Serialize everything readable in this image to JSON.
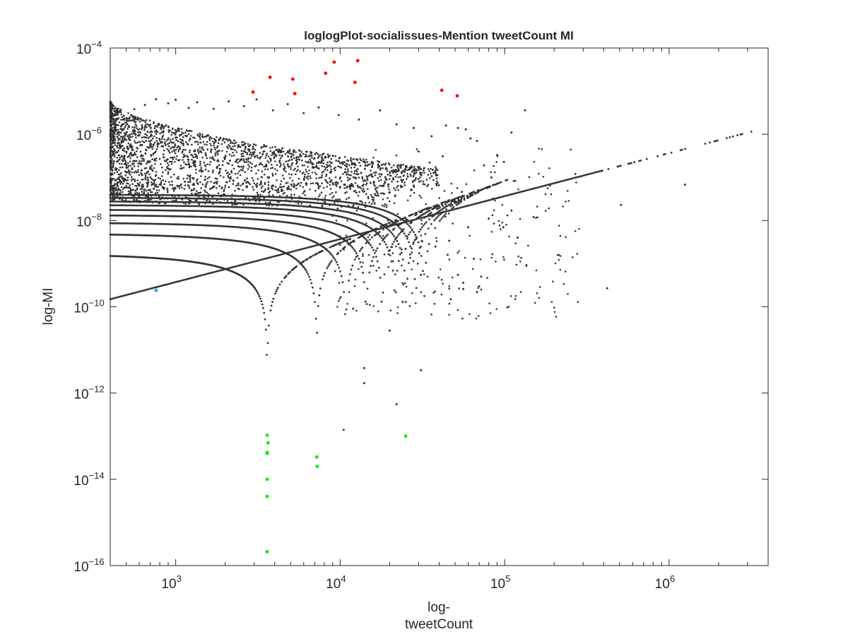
{
  "chart_data": {
    "type": "scatter",
    "title": "loglogPlot-socialissues-Mention tweetCount MI",
    "xlabel_lines": [
      "log-",
      "tweetCount"
    ],
    "ylabel": "log-MI",
    "xscale": "log",
    "yscale": "log",
    "xlim": [
      400,
      4000000
    ],
    "ylim": [
      1e-16,
      0.0001
    ],
    "grid": false,
    "legend": "none",
    "x_ticks": [
      {
        "value": 1000,
        "base": "10",
        "exp": "3"
      },
      {
        "value": 10000,
        "base": "10",
        "exp": "4"
      },
      {
        "value": 100000,
        "base": "10",
        "exp": "5"
      },
      {
        "value": 1000000,
        "base": "10",
        "exp": "6"
      }
    ],
    "y_ticks": [
      {
        "value": 1e-16,
        "base": "10",
        "exp": "−16"
      },
      {
        "value": 1e-14,
        "base": "10",
        "exp": "−14"
      },
      {
        "value": 1e-12,
        "base": "10",
        "exp": "−12"
      },
      {
        "value": 1e-10,
        "base": "10",
        "exp": "−10"
      },
      {
        "value": 1e-08,
        "base": "10",
        "exp": "−8"
      },
      {
        "value": 1e-06,
        "base": "10",
        "exp": "−6"
      },
      {
        "value": 0.0001,
        "base": "10",
        "exp": "−4"
      }
    ],
    "colors": {
      "bulk": "#333333",
      "high": "#ff0000",
      "low": "#00ee00",
      "marked": "#00b0f0",
      "axis": "#262626"
    },
    "series": [
      {
        "color_key": "high",
        "points": [
          [
            2950,
            9.5e-06
          ],
          [
            3750,
            2.1e-05
          ],
          [
            5150,
            1.9e-05
          ],
          [
            5300,
            8.8e-06
          ],
          [
            8150,
            2.6e-05
          ],
          [
            9200,
            4.7e-05
          ],
          [
            12300,
            1.6e-05
          ],
          [
            12800,
            5.1e-05
          ],
          [
            41500,
            1.05e-05
          ],
          [
            51500,
            7.8e-06
          ]
        ]
      },
      {
        "color_key": "low",
        "points": [
          [
            3600,
            1.05e-13
          ],
          [
            3650,
            7e-14
          ],
          [
            3600,
            4.2e-14
          ],
          [
            3600,
            4e-14
          ],
          [
            3600,
            1e-14
          ],
          [
            3600,
            4e-15
          ],
          [
            3600,
            2.1e-16
          ],
          [
            7200,
            3.3e-14
          ],
          [
            7250,
            2e-14
          ],
          [
            25000,
            1e-13
          ]
        ]
      },
      {
        "color_key": "marked",
        "points": [
          [
            760,
            2.4e-10
          ]
        ]
      },
      {
        "color_key": "bulk",
        "generator": "cloud",
        "upper_line": {
          "x": [
            400,
            3300000
          ],
          "y": [
            1.5e-10,
            1.2e-06
          ]
        },
        "cusp_curves": [
          {
            "level": 1.7e-09,
            "zero_x": 3600
          },
          {
            "level": 5e-09,
            "zero_x": 7200
          },
          {
            "level": 9e-09,
            "zero_x": 10800
          },
          {
            "level": 1.35e-08,
            "zero_x": 14400
          },
          {
            "level": 1.8e-08,
            "zero_x": 18000
          },
          {
            "level": 2.3e-08,
            "zero_x": 21600
          },
          {
            "level": 2.8e-08,
            "zero_x": 25200
          },
          {
            "level": 3.4e-08,
            "zero_x": 28800
          },
          {
            "level": 4e-08,
            "zero_x": 32400
          }
        ],
        "points": [
          [
            400,
            3.5e-06
          ],
          [
            480,
            2.2e-06
          ],
          [
            560,
            3.8e-06
          ],
          [
            650,
            4.8e-06
          ],
          [
            760,
            6.5e-06
          ],
          [
            900,
            5.2e-06
          ],
          [
            1000,
            6.3e-06
          ],
          [
            1200,
            4.1e-06
          ],
          [
            1350,
            5.5e-06
          ],
          [
            1700,
            3.9e-06
          ],
          [
            2100,
            5.8e-06
          ],
          [
            2600,
            4.5e-06
          ],
          [
            3100,
            6.4e-06
          ],
          [
            3900,
            3.6e-06
          ],
          [
            4800,
            5e-06
          ],
          [
            6000,
            3.1e-06
          ],
          [
            7400,
            4.2e-06
          ],
          [
            9800,
            2.8e-06
          ],
          [
            13000,
            2.2e-06
          ],
          [
            17500,
            3.6e-06
          ],
          [
            22000,
            1.7e-06
          ],
          [
            28000,
            1.4e-06
          ],
          [
            36000,
            9e-07
          ],
          [
            44000,
            1.6e-06
          ],
          [
            52000,
            1.4e-06
          ],
          [
            58000,
            1.3e-06
          ],
          [
            62000,
            8e-07
          ],
          [
            68000,
            7e-07
          ],
          [
            75000,
            1.9e-07
          ],
          [
            90000,
            3.3e-07
          ],
          [
            99000,
            2.3e-07
          ],
          [
            133000,
            3.6e-06
          ],
          [
            110000,
            1.1e-06
          ],
          [
            83000,
            1e-07
          ],
          [
            110000,
            1.7e-08
          ],
          [
            98000,
            7e-09
          ],
          [
            56000,
            3.6e-10
          ],
          [
            56000,
            2.6e-10
          ],
          [
            47000,
            1.5e-10
          ],
          [
            68000,
            2.2e-10
          ],
          [
            70000,
            3e-10
          ],
          [
            72000,
            5e-10
          ],
          [
            65000,
            1.3e-09
          ],
          [
            45000,
            1.6e-09
          ],
          [
            38000,
            2.5e-09
          ],
          [
            31000,
            5.5e-10
          ],
          [
            24000,
            1.3e-10
          ],
          [
            31000,
            3.4e-12
          ],
          [
            14000,
            3.8e-12
          ],
          [
            14000,
            1.7e-12
          ],
          [
            10500,
            1.4e-13
          ],
          [
            22000,
            5.5e-13
          ],
          [
            20000,
            2.8e-11
          ],
          [
            12000,
            9e-11
          ],
          [
            25000,
            2.2e-09
          ],
          [
            420000,
            2.7e-10
          ],
          [
            510000,
            2.3e-08
          ],
          [
            1250000,
            6.8e-08
          ],
          [
            28000,
            6.5e-08
          ],
          [
            20000,
            4.5e-08
          ],
          [
            19000,
            9e-08
          ],
          [
            16000,
            7.5e-08
          ],
          [
            35000,
            2.2e-07
          ],
          [
            30000,
            4e-07
          ],
          [
            42000,
            3.1e-07
          ],
          [
            16500,
            1.3e-07
          ],
          [
            21000,
            9.5e-08
          ],
          [
            27000,
            5.2e-08
          ],
          [
            55000,
            4.6e-08
          ],
          [
            80000,
            1.1e-08
          ],
          [
            120000,
            4e-09
          ],
          [
            150000,
            1.2e-08
          ],
          [
            60000,
            7e-09
          ],
          [
            46000,
            3.4e-09
          ],
          [
            52000,
            5.5e-10
          ]
        ]
      }
    ]
  }
}
